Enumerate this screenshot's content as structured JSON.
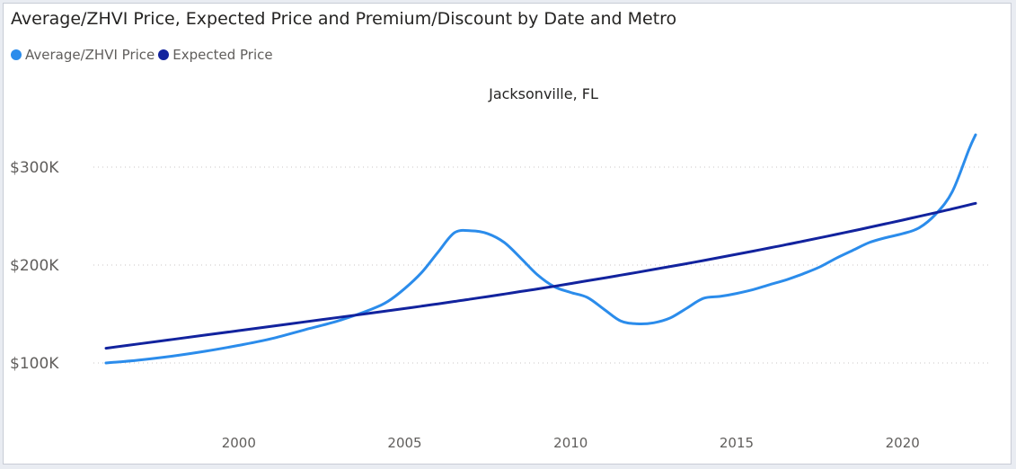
{
  "chart_data": {
    "type": "line",
    "title": "Average/ZHVI Price, Expected Price and Premium/Discount by Date and Metro",
    "panel_title": "Jacksonville, FL",
    "xlabel": "",
    "ylabel": "",
    "xlim": [
      1996,
      2022.2
    ],
    "ylim": [
      100000,
      300000
    ],
    "x_ticks": [
      2000,
      2005,
      2010,
      2015,
      2020
    ],
    "y_ticks": [
      {
        "value": 100000,
        "label": "$100K"
      },
      {
        "value": 200000,
        "label": "$200K"
      },
      {
        "value": 300000,
        "label": "$300K"
      }
    ],
    "grid": "horizontal dotted",
    "legend_position": "top-left",
    "x": [
      1996,
      1997,
      1998,
      1999,
      2000,
      2001,
      2002,
      2003,
      2004,
      2004.5,
      2005,
      2005.5,
      2006,
      2006.5,
      2007,
      2007.5,
      2008,
      2008.5,
      2009,
      2009.5,
      2010,
      2010.5,
      2011,
      2011.5,
      2012,
      2012.5,
      2013,
      2013.5,
      2014,
      2014.5,
      2015,
      2015.5,
      2016,
      2016.5,
      2017,
      2017.5,
      2018,
      2018.5,
      2019,
      2019.5,
      2020,
      2020.5,
      2021,
      2021.5,
      2022,
      2022.2
    ],
    "series": [
      {
        "name": "Average/ZHVI Price",
        "color": "#2b8ceb",
        "values": [
          100000,
          103000,
          107000,
          112000,
          118000,
          125000,
          134000,
          143000,
          155000,
          163000,
          176000,
          192000,
          213000,
          233000,
          235000,
          232000,
          223000,
          207000,
          190000,
          178000,
          172000,
          167000,
          155000,
          143000,
          140000,
          141000,
          146000,
          156000,
          166000,
          168000,
          171000,
          175000,
          180000,
          185000,
          191000,
          198000,
          207000,
          215000,
          223000,
          228000,
          232000,
          238000,
          252000,
          275000,
          318000,
          333000
        ]
      },
      {
        "name": "Expected Price",
        "color": "#12239e",
        "values": [
          115000,
          119500,
          124000,
          128500,
          133000,
          137500,
          142000,
          146500,
          151000,
          153300,
          155600,
          158000,
          160400,
          162800,
          165300,
          167800,
          170400,
          173000,
          175600,
          178300,
          181100,
          183900,
          186700,
          189600,
          192500,
          195500,
          198500,
          201500,
          204600,
          207800,
          211000,
          214200,
          217500,
          220900,
          224300,
          227800,
          231300,
          234900,
          238500,
          242200,
          245900,
          249700,
          253500,
          257400,
          261400,
          263000
        ]
      }
    ]
  }
}
